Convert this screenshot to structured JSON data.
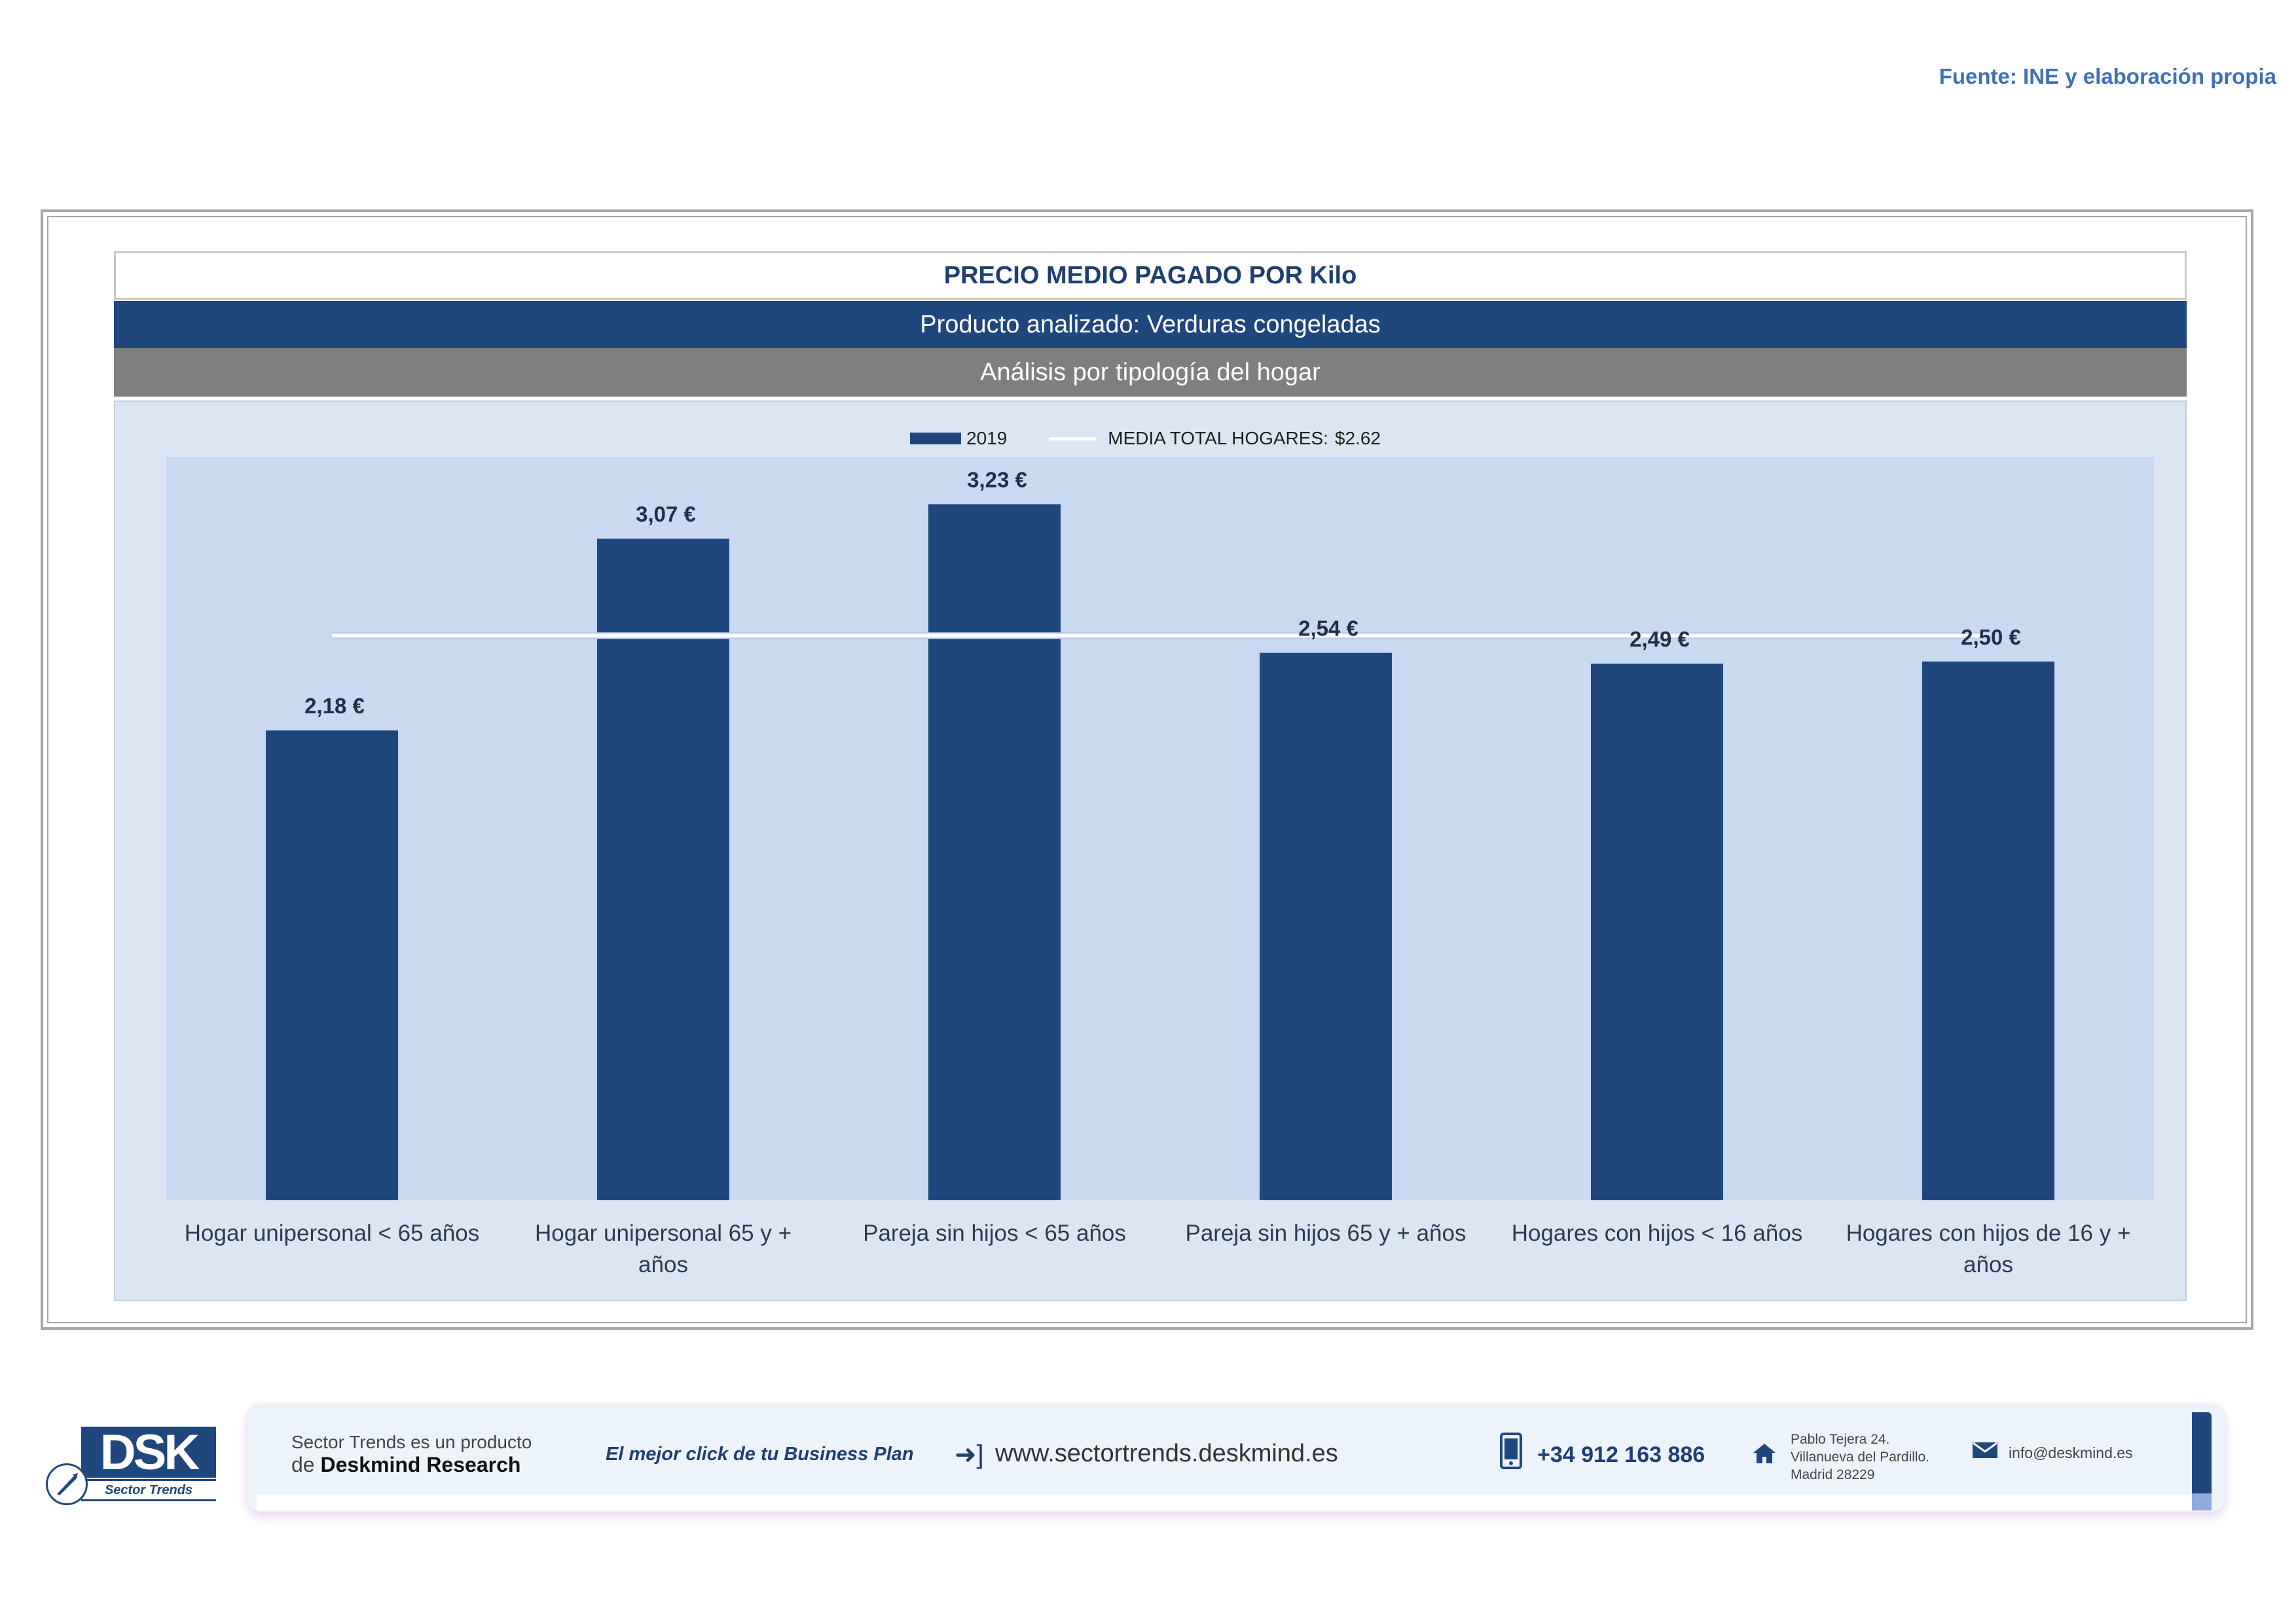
{
  "source": "Fuente: INE y elaboración propia",
  "header": {
    "title": "PRECIO MEDIO PAGADO POR Kilo",
    "product": "Producto analizado: Verduras congeladas",
    "analysis": "Análisis por tipología del hogar"
  },
  "colors": {
    "bar": "#1f477d",
    "plot_bg": "#c8d9f0",
    "chart_bg": "#dce6f2",
    "average_line": "#ffffff",
    "label": "#1f2e4a"
  },
  "chart_data": {
    "type": "bar",
    "categories": [
      "Hogar unipersonal < 65 años",
      "Hogar unipersonal  65 y + años",
      "Pareja sin hijos < 65 años",
      "Pareja sin hijos 65 y + años",
      "Hogares con hijos < 16 años",
      "Hogares con hijos de 16 y + años"
    ],
    "category_lines": [
      [
        "Hogar unipersonal < 65 años"
      ],
      [
        "Hogar unipersonal  65 y +",
        "años"
      ],
      [
        "Pareja sin hijos < 65 años"
      ],
      [
        "Pareja sin hijos 65 y + años"
      ],
      [
        "Hogares con hijos < 16 años"
      ],
      [
        "Hogares con hijos de 16 y +",
        "años"
      ]
    ],
    "series": [
      {
        "name": "2019",
        "values": [
          2.18,
          3.07,
          3.23,
          2.54,
          2.49,
          2.5
        ],
        "labels": [
          "2,18 €",
          "3,07 €",
          "3,23 €",
          "2,54 €",
          "2,49 €",
          "2,50 €"
        ]
      }
    ],
    "reference_line": {
      "name": "MEDIA TOTAL  HOGARES:",
      "value": 2.62,
      "value_label": "$2.62"
    },
    "ylim": [
      0,
      3.45
    ],
    "grid": false,
    "legend_position": "top-center"
  },
  "footer": {
    "logo_text": "DSK",
    "logo_sub": "Sector Trends",
    "tagline_1": "Sector Trends es un producto",
    "tagline_2_prefix": "de ",
    "tagline_2_brand": "Deskmind Research",
    "slogan": "El mejor click de tu Business Plan",
    "website": "www.sectortrends.deskmind.es",
    "phone": "+34 912 163 886",
    "address_1": "Pablo Tejera 24.",
    "address_2": "Villanueva del Pardillo.",
    "address_3": "Madrid 28229",
    "email": "info@deskmind.es",
    "icons": [
      "login-arrow-icon",
      "mobile-phone-icon",
      "home-icon",
      "mail-icon"
    ]
  }
}
